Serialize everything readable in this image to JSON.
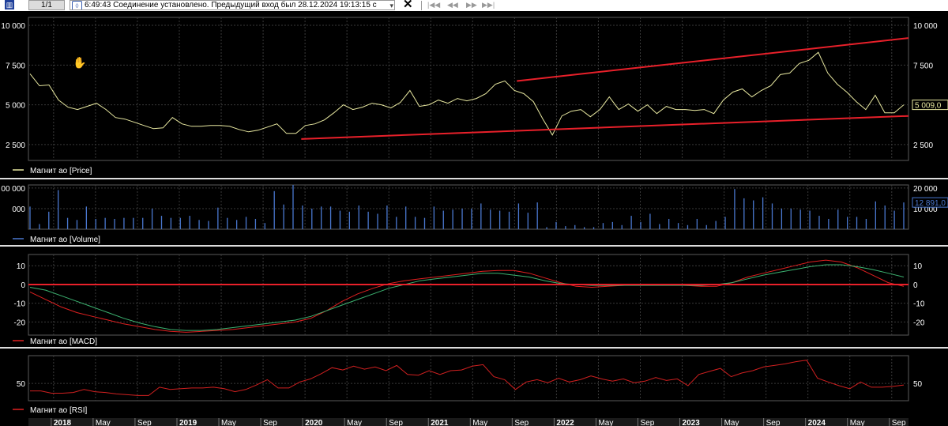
{
  "toolbar": {
    "counter": "1/1",
    "status_text": "6:49:43  Соединение установлено. Предыдущий вход был 28.12.2024 19:13:15 с",
    "close_label": "✕",
    "nav_first": "|◀◀",
    "nav_prev": "◀◀",
    "nav_next": "▶▶",
    "nav_last": "▶▶|"
  },
  "colors": {
    "background": "#000000",
    "grid": "#3a3a3a",
    "price_line": "#e8e8a0",
    "trend_line": "#e8202a",
    "volume_bar": "#4a78d0",
    "macd_line": "#e02020",
    "signal_line": "#3cb371",
    "rsi_line": "#d02020",
    "axis_text": "#ffffff"
  },
  "time_axis": {
    "labels": [
      "2018",
      "May",
      "Sep",
      "2019",
      "May",
      "Sep",
      "2020",
      "May",
      "Sep",
      "2021",
      "May",
      "Sep",
      "2022",
      "May",
      "Sep",
      "2023",
      "May",
      "Sep",
      "2024",
      "May",
      "Sep"
    ],
    "year_labels": [
      "2018",
      "2019",
      "2020",
      "2021",
      "2022",
      "2023",
      "2024"
    ]
  },
  "chart_data": [
    {
      "type": "line",
      "legend": "Магнит ао [Price]",
      "y_ticks": [
        "10 000",
        "7 500",
        "5 000",
        "2 500"
      ],
      "y_tick_values": [
        10000,
        7500,
        5000,
        2500
      ],
      "ylim": [
        1500,
        10500
      ],
      "last_value_label": "5 009,0",
      "series": [
        {
          "name": "Магнит ао [Price]",
          "values": [
            6950,
            6200,
            6250,
            5300,
            4850,
            4700,
            4900,
            5100,
            4700,
            4200,
            4100,
            3900,
            3700,
            3500,
            3550,
            4200,
            3800,
            3650,
            3650,
            3700,
            3700,
            3650,
            3450,
            3300,
            3400,
            3600,
            3800,
            3200,
            3200,
            3700,
            3800,
            4050,
            4500,
            5000,
            4700,
            4850,
            5100,
            5000,
            4800,
            5150,
            5900,
            4900,
            5000,
            5300,
            5100,
            5400,
            5250,
            5400,
            5700,
            6300,
            6500,
            5900,
            5700,
            5200,
            4100,
            3100,
            4300,
            4600,
            4700,
            4250,
            4700,
            5500,
            4700,
            5050,
            4600,
            5000,
            4450,
            4900,
            4700,
            4700,
            4650,
            4700,
            4450,
            5300,
            5800,
            6000,
            5500,
            5900,
            6200,
            6900,
            7000,
            7600,
            7800,
            8300,
            7000,
            6300,
            5800,
            5200,
            4700,
            5600,
            4500,
            4500,
            5000
          ]
        }
      ],
      "trend_lines": [
        {
          "from": [
            0.555,
            6500
          ],
          "to": [
            1.0,
            9200
          ]
        },
        {
          "from": [
            0.31,
            2850
          ],
          "to": [
            1.0,
            4300
          ]
        }
      ]
    },
    {
      "type": "bar",
      "legend": "Магнит ао [Volume]",
      "y_ticks": [
        "20 000",
        "10 000"
      ],
      "y_tick_values": [
        20000,
        10000
      ],
      "left_tick_labels": [
        "00 000",
        "000"
      ],
      "ylim": [
        0,
        21500
      ],
      "last_value_label": "12 891,0",
      "series": [
        {
          "name": "Магнит ао [Volume]",
          "values": [
            11000,
            2500,
            8500,
            19000,
            5500,
            4500,
            11000,
            5000,
            5500,
            5000,
            5500,
            5500,
            5500,
            10000,
            6500,
            5500,
            5500,
            6500,
            4500,
            4000,
            10500,
            5500,
            4500,
            6000,
            5000,
            3000,
            18500,
            12000,
            21500,
            11500,
            10000,
            11000,
            11000,
            9000,
            8500,
            11500,
            8500,
            7500,
            11500,
            6000,
            11000,
            6000,
            5500,
            11000,
            9000,
            9500,
            10000,
            10000,
            12500,
            9500,
            9000,
            8500,
            12500,
            8000,
            13000,
            1000,
            3500,
            1500,
            2000,
            1000,
            1000,
            3000,
            3500,
            2000,
            6500,
            3500,
            7500,
            2500,
            5000,
            3000,
            2000,
            5000,
            2000,
            4000,
            6000,
            19500,
            15000,
            14000,
            15500,
            12500,
            10000,
            10000,
            9500,
            9000,
            6500,
            5000,
            9500,
            6000,
            6000,
            5000,
            13500,
            11500,
            9000,
            13000
          ]
        }
      ]
    },
    {
      "type": "line",
      "legend": "Магнит ао [MACD]",
      "y_ticks": [
        "10",
        "0",
        "-10",
        "-20"
      ],
      "y_tick_values": [
        10,
        0,
        -10,
        -20
      ],
      "ylim": [
        -27,
        16
      ],
      "series": [
        {
          "name": "MACD",
          "values": [
            -4,
            -8,
            -12,
            -15,
            -17,
            -19,
            -21,
            -22.5,
            -24,
            -25,
            -25.5,
            -25,
            -24.5,
            -24,
            -23,
            -22,
            -21,
            -20,
            -18,
            -14,
            -9,
            -5,
            -2,
            0.5,
            2,
            3,
            4,
            5,
            6,
            7,
            7.5,
            7.5,
            6,
            3.5,
            1,
            -1,
            -1.5,
            -1,
            -0.5,
            0,
            0,
            0,
            -0.5,
            -1,
            -1,
            1,
            4,
            6,
            8,
            10,
            12,
            13,
            12,
            9,
            5,
            1,
            -1
          ]
        },
        {
          "name": "Signal",
          "values": [
            -1.5,
            -3,
            -6,
            -9,
            -12,
            -15,
            -18,
            -20.5,
            -22.5,
            -24,
            -24.5,
            -24.5,
            -24,
            -23,
            -22,
            -21,
            -20,
            -19,
            -17,
            -14,
            -11,
            -8,
            -5,
            -2,
            0,
            2,
            3,
            4,
            5,
            6,
            6,
            5,
            4,
            2,
            0.5,
            0,
            -0.5,
            -0.5,
            -0.5,
            -0.5,
            -0.5,
            -0.5,
            -0.5,
            -0.5,
            0,
            1,
            3,
            5,
            6.5,
            8,
            9.5,
            10.5,
            10.5,
            9.5,
            8,
            6,
            4
          ]
        }
      ],
      "reference_line": 0
    },
    {
      "type": "line",
      "legend": "Магнит ао [RSI]",
      "y_ticks": [
        "50"
      ],
      "y_tick_values": [
        50
      ],
      "ylim": [
        27,
        87
      ],
      "series": [
        {
          "name": "Магнит ао [RSI]",
          "values": [
            40,
            40,
            37,
            37,
            38,
            42,
            39,
            38,
            36,
            35,
            34,
            34,
            45,
            42,
            43,
            44,
            44,
            45,
            43,
            39,
            42,
            48,
            55,
            44,
            44,
            52,
            56,
            63,
            71,
            68,
            73,
            69,
            72,
            67,
            74,
            62,
            61,
            67,
            62,
            67,
            68,
            73,
            75,
            59,
            55,
            42,
            52,
            55,
            51,
            57,
            52,
            55,
            60,
            56,
            53,
            56,
            51,
            53,
            58,
            54,
            56,
            47,
            62,
            66,
            70,
            59,
            64,
            67,
            72,
            74,
            76,
            79,
            81,
            57,
            52,
            47,
            43,
            52,
            45,
            45,
            46,
            48
          ]
        }
      ]
    }
  ]
}
